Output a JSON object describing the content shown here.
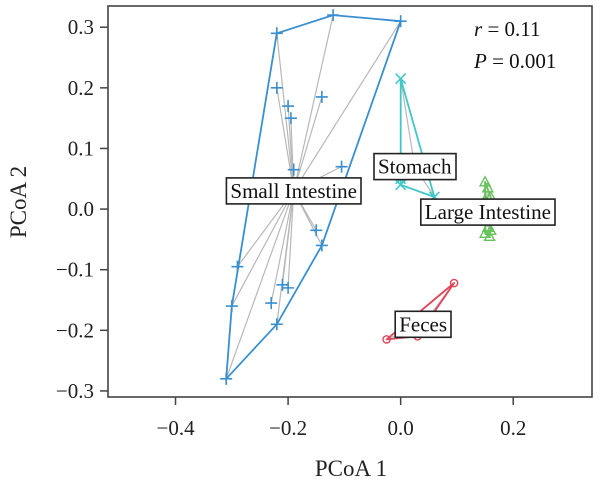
{
  "chart_data": {
    "type": "scatter",
    "title": "",
    "xlabel": "PCoA 1",
    "ylabel": "PCoA 2",
    "xlim": [
      -0.52,
      0.34
    ],
    "ylim": [
      -0.31,
      0.335
    ],
    "xticks": [
      -0.4,
      -0.2,
      0.0,
      0.2
    ],
    "xtick_labels": [
      "−0.4",
      "−0.2",
      "0.0",
      "0.2"
    ],
    "yticks": [
      0.3,
      0.2,
      0.1,
      0.0,
      -0.1,
      -0.2,
      -0.3
    ],
    "ytick_labels": [
      "0.3",
      "0.2",
      "0.1",
      "0.0",
      "−0.1",
      "−0.2",
      "−0.3"
    ],
    "grid": false,
    "stats": {
      "r_label": "r",
      "r_value": "= 0.11",
      "p_label": "P",
      "p_value": "= 0.001"
    },
    "groups": [
      {
        "name": "Small Intestine",
        "color": "#3a8fd1",
        "marker": "plus",
        "centroid": [
          -0.19,
          0.03
        ],
        "points": [
          [
            -0.12,
            0.32
          ],
          [
            0.0,
            0.31
          ],
          [
            -0.22,
            0.29
          ],
          [
            -0.22,
            0.2
          ],
          [
            -0.2,
            0.17
          ],
          [
            -0.195,
            0.15
          ],
          [
            -0.14,
            0.185
          ],
          [
            -0.105,
            0.07
          ],
          [
            -0.19,
            0.065
          ],
          [
            -0.15,
            -0.035
          ],
          [
            -0.14,
            -0.06
          ],
          [
            -0.29,
            -0.095
          ],
          [
            -0.2,
            -0.13
          ],
          [
            -0.21,
            -0.125
          ],
          [
            -0.23,
            -0.155
          ],
          [
            -0.3,
            -0.16
          ],
          [
            -0.22,
            -0.19
          ],
          [
            -0.31,
            -0.28
          ]
        ],
        "hull": [
          [
            -0.12,
            0.32
          ],
          [
            0.0,
            0.31
          ],
          [
            -0.14,
            -0.06
          ],
          [
            -0.22,
            -0.19
          ],
          [
            -0.31,
            -0.28
          ],
          [
            -0.3,
            -0.16
          ],
          [
            -0.22,
            0.29
          ]
        ]
      },
      {
        "name": "Stomach",
        "color": "#3fc7c9",
        "marker": "x",
        "centroid": [
          0.025,
          0.07
        ],
        "points": [
          [
            0.0,
            0.215
          ],
          [
            0.0,
            0.05
          ],
          [
            0.06,
            0.02
          ],
          [
            0.0,
            0.04
          ]
        ],
        "hull": [
          [
            0.0,
            0.215
          ],
          [
            0.06,
            0.02
          ],
          [
            0.0,
            0.04
          ]
        ]
      },
      {
        "name": "Large Intestine",
        "color": "#66c25a",
        "marker": "triangle",
        "centroid": [
          0.155,
          -0.005
        ],
        "points": [
          [
            0.15,
            0.045
          ],
          [
            0.155,
            0.035
          ],
          [
            0.16,
            0.02
          ],
          [
            0.15,
            0.015
          ],
          [
            0.155,
            0.005
          ],
          [
            0.16,
            -0.01
          ],
          [
            0.15,
            -0.02
          ],
          [
            0.155,
            -0.03
          ],
          [
            0.16,
            -0.035
          ],
          [
            0.15,
            -0.04
          ],
          [
            0.158,
            -0.045
          ]
        ],
        "hull": [
          [
            0.15,
            0.045
          ],
          [
            0.16,
            0.02
          ],
          [
            0.16,
            -0.035
          ],
          [
            0.158,
            -0.045
          ],
          [
            0.15,
            -0.04
          ],
          [
            0.15,
            0.015
          ]
        ]
      },
      {
        "name": "Feces",
        "color": "#e0455a",
        "marker": "circle",
        "centroid": [
          0.04,
          -0.19
        ],
        "points": [
          [
            0.095,
            -0.122
          ],
          [
            -0.025,
            -0.215
          ],
          [
            0.03,
            -0.21
          ]
        ],
        "hull": [
          [
            0.095,
            -0.122
          ],
          [
            -0.025,
            -0.215
          ],
          [
            0.03,
            -0.21
          ]
        ]
      }
    ]
  }
}
